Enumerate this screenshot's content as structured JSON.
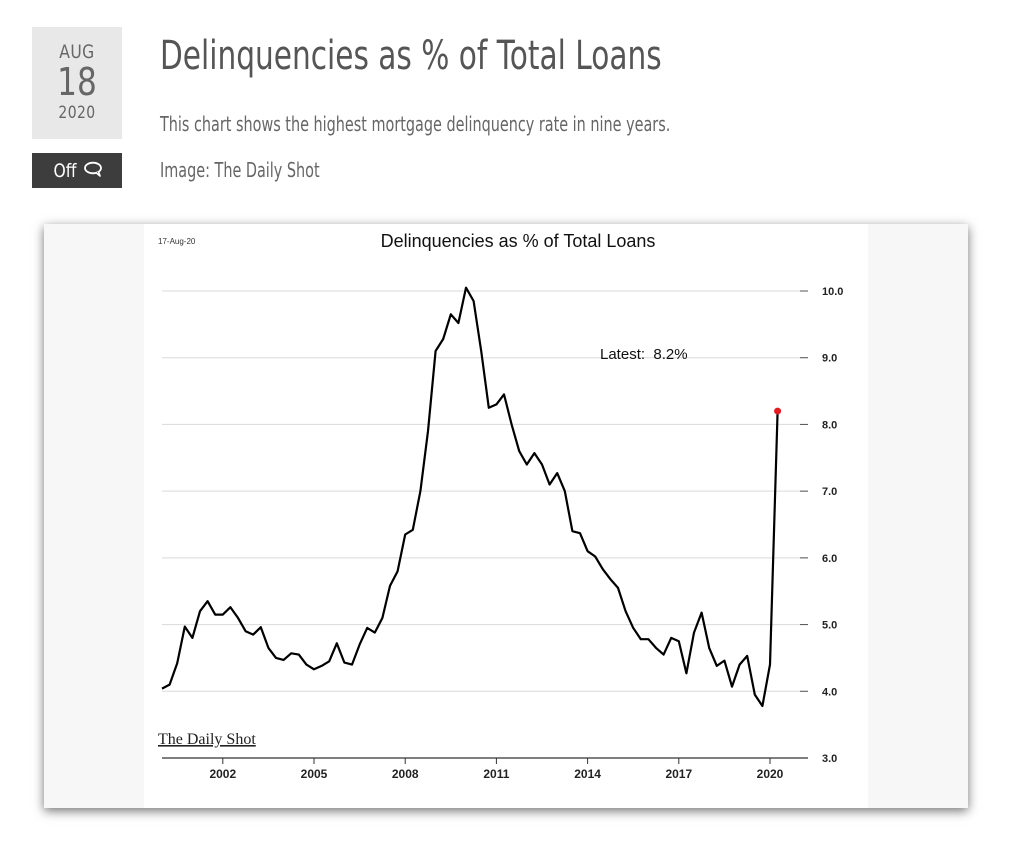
{
  "post": {
    "date": {
      "month": "AUG",
      "day": "18",
      "year": "2020"
    },
    "comments_label": "Off",
    "comments_icon": "speech-bubble-icon",
    "title": "Delinquencies as % of Total Loans",
    "description": "This chart shows the highest mortgage delinquency rate in nine years.",
    "credit": "Image: The Daily Shot"
  },
  "chart_data": {
    "type": "line",
    "title": "Delinquencies as % of Total Loans",
    "date_stamp": "17-Aug-20",
    "annotation": "Latest:  8.2%",
    "watermark": "The Daily Shot",
    "xlabel": "",
    "ylabel": "",
    "y_axis_side": "right",
    "ylim": [
      3.0,
      10.0
    ],
    "y_ticks": [
      "3.0",
      "4.0",
      "5.0",
      "6.0",
      "7.0",
      "8.0",
      "9.0",
      "10.0"
    ],
    "xlim": [
      2000.0,
      2021.25
    ],
    "x_ticks": [
      "2002",
      "2005",
      "2008",
      "2011",
      "2014",
      "2017",
      "2020"
    ],
    "grid": true,
    "line_color": "#000000",
    "marker_color": "#e31b23",
    "x": [
      2000.0,
      2000.25,
      2000.5,
      2000.75,
      2001.0,
      2001.25,
      2001.5,
      2001.75,
      2002.0,
      2002.25,
      2002.5,
      2002.75,
      2003.0,
      2003.25,
      2003.5,
      2003.75,
      2004.0,
      2004.25,
      2004.5,
      2004.75,
      2005.0,
      2005.25,
      2005.5,
      2005.75,
      2006.0,
      2006.25,
      2006.5,
      2006.75,
      2007.0,
      2007.25,
      2007.5,
      2007.75,
      2008.0,
      2008.25,
      2008.5,
      2008.75,
      2009.0,
      2009.25,
      2009.5,
      2009.75,
      2010.0,
      2010.25,
      2010.5,
      2010.75,
      2011.0,
      2011.25,
      2011.5,
      2011.75,
      2012.0,
      2012.25,
      2012.5,
      2012.75,
      2013.0,
      2013.25,
      2013.5,
      2013.75,
      2014.0,
      2014.25,
      2014.5,
      2014.75,
      2015.0,
      2015.25,
      2015.5,
      2015.75,
      2016.0,
      2016.25,
      2016.5,
      2016.75,
      2017.0,
      2017.25,
      2017.5,
      2017.75,
      2018.0,
      2018.25,
      2018.5,
      2018.75,
      2019.0,
      2019.25,
      2019.5,
      2019.75,
      2020.0,
      2020.25
    ],
    "y": [
      4.04,
      4.1,
      4.42,
      4.97,
      4.8,
      5.2,
      5.35,
      5.15,
      5.15,
      5.26,
      5.1,
      4.9,
      4.85,
      4.96,
      4.65,
      4.5,
      4.47,
      4.57,
      4.55,
      4.4,
      4.33,
      4.38,
      4.45,
      4.72,
      4.43,
      4.4,
      4.7,
      4.95,
      4.88,
      5.1,
      5.58,
      5.8,
      6.35,
      6.42,
      7.0,
      7.9,
      9.1,
      9.28,
      9.65,
      9.52,
      10.05,
      9.85,
      9.1,
      8.25,
      8.3,
      8.45,
      8.0,
      7.6,
      7.4,
      7.57,
      7.4,
      7.1,
      7.27,
      7.0,
      6.4,
      6.37,
      6.1,
      6.02,
      5.83,
      5.68,
      5.55,
      5.2,
      4.95,
      4.78,
      4.78,
      4.65,
      4.55,
      4.8,
      4.75,
      4.27,
      4.88,
      5.18,
      4.65,
      4.38,
      4.46,
      4.07,
      4.4,
      4.53,
      3.95,
      3.78,
      4.4,
      8.2
    ]
  }
}
